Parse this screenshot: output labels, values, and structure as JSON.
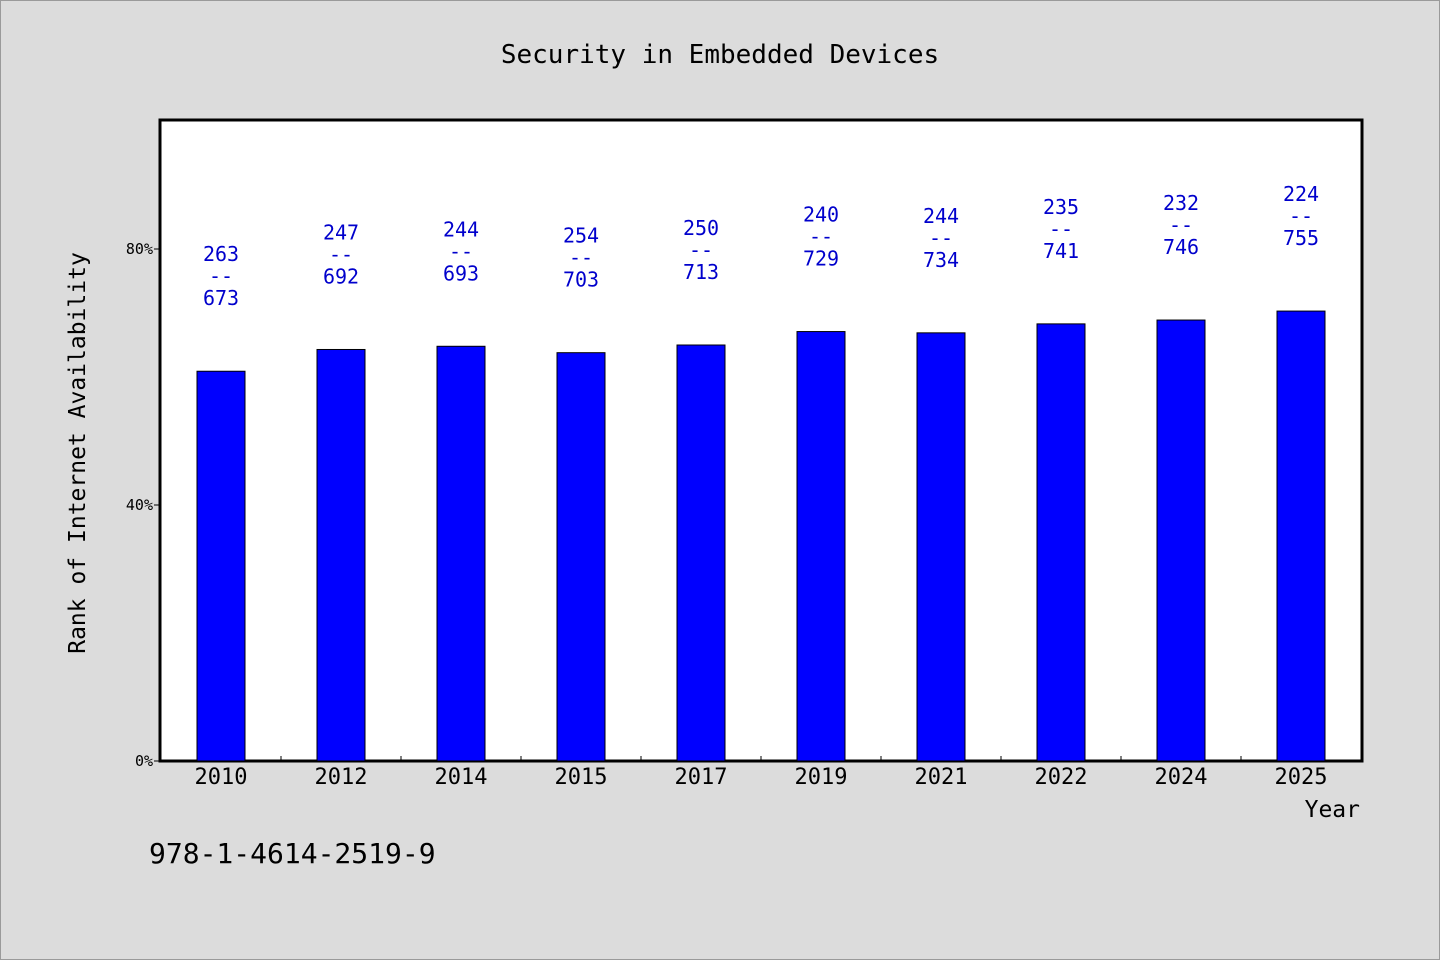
{
  "chart_data": {
    "type": "bar",
    "title": "Security in Embedded Devices",
    "xlabel": "Year",
    "ylabel": "Rank of Internet Availability",
    "categories": [
      "2010",
      "2012",
      "2014",
      "2015",
      "2017",
      "2019",
      "2021",
      "2022",
      "2024",
      "2025"
    ],
    "values": [
      60.9,
      64.3,
      64.8,
      63.8,
      65.0,
      67.1,
      66.9,
      68.3,
      68.9,
      70.3
    ],
    "bar_labels": [
      [
        "263",
        "--",
        "673"
      ],
      [
        "247",
        "--",
        "692"
      ],
      [
        "244",
        "--",
        "693"
      ],
      [
        "254",
        "--",
        "703"
      ],
      [
        "250",
        "--",
        "713"
      ],
      [
        "240",
        "--",
        "729"
      ],
      [
        "244",
        "--",
        "734"
      ],
      [
        "235",
        "--",
        "741"
      ],
      [
        "232",
        "--",
        "746"
      ],
      [
        "224",
        "--",
        "755"
      ]
    ],
    "yticks": [
      {
        "value": 0,
        "label": "0%"
      },
      {
        "value": 40,
        "label": "40%"
      },
      {
        "value": 80,
        "label": "80%"
      }
    ],
    "ylim": [
      0,
      100
    ],
    "grid": false,
    "bar_color": "#0000ff",
    "label_color": "#0000cc",
    "background": "#dcdcdc",
    "plot_background": "#ffffff"
  },
  "footer_text": "978-1-4614-2519-9"
}
